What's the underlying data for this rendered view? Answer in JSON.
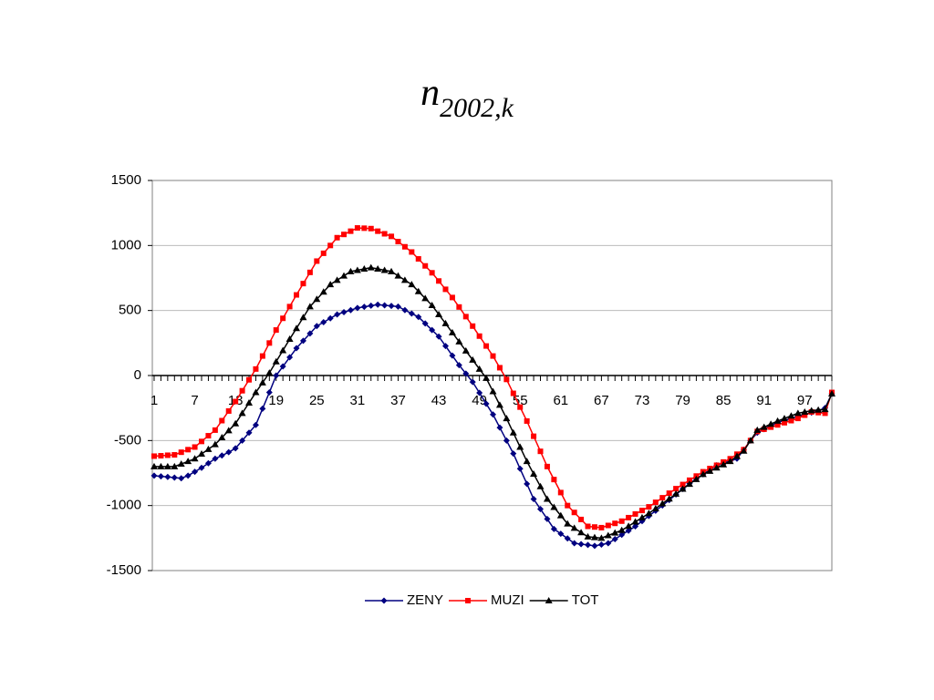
{
  "chart_data": {
    "type": "line",
    "title": "n",
    "title_subscript": "2002,k",
    "categories": [
      "1",
      null,
      null,
      null,
      null,
      null,
      "7",
      null,
      null,
      null,
      null,
      null,
      "13",
      null,
      null,
      null,
      null,
      null,
      "19",
      null,
      null,
      null,
      null,
      null,
      "25",
      null,
      null,
      null,
      null,
      null,
      "31",
      null,
      null,
      null,
      null,
      null,
      "37",
      null,
      null,
      null,
      null,
      null,
      "43",
      null,
      null,
      null,
      null,
      null,
      "49",
      null,
      null,
      null,
      null,
      null,
      "55",
      null,
      null,
      null,
      null,
      null,
      "61",
      null,
      null,
      null,
      null,
      null,
      "67",
      null,
      null,
      null,
      null,
      null,
      "73",
      null,
      null,
      null,
      null,
      null,
      "79",
      null,
      null,
      null,
      null,
      null,
      "85",
      null,
      null,
      null,
      null,
      null,
      "91",
      null,
      null,
      null,
      null,
      null,
      "97",
      null,
      null,
      null,
      null
    ],
    "series": [
      {
        "name": "ZENY",
        "color": "#000080",
        "marker": "diamond",
        "values": [
          -770,
          -775,
          -780,
          -785,
          -790,
          -770,
          -740,
          -710,
          -675,
          -640,
          -615,
          -590,
          -560,
          -500,
          -440,
          -380,
          -255,
          -130,
          0,
          70,
          140,
          210,
          267,
          323,
          380,
          410,
          440,
          470,
          487,
          503,
          520,
          528,
          537,
          545,
          540,
          535,
          530,
          503,
          477,
          450,
          400,
          350,
          300,
          227,
          153,
          80,
          15,
          -50,
          -133,
          -217,
          -300,
          -400,
          -500,
          -600,
          -717,
          -833,
          -950,
          -1027,
          -1103,
          -1180,
          -1217,
          -1253,
          -1290,
          -1297,
          -1303,
          -1310,
          -1300,
          -1290,
          -1258,
          -1225,
          -1193,
          -1160,
          -1120,
          -1080,
          -1040,
          -1000,
          -958,
          -915,
          -873,
          -830,
          -795,
          -760,
          -725,
          -690,
          -673,
          -657,
          -640,
          -570,
          -500,
          -440,
          -413,
          -387,
          -360,
          -345,
          -330,
          -315,
          -300,
          -285,
          -270,
          -250,
          -140
        ]
      },
      {
        "name": "MUZI",
        "color": "#ff0000",
        "marker": "square",
        "values": [
          -620,
          -617,
          -613,
          -610,
          -590,
          -570,
          -550,
          -507,
          -463,
          -420,
          -347,
          -273,
          -200,
          -117,
          -33,
          50,
          150,
          250,
          350,
          440,
          530,
          620,
          707,
          793,
          880,
          940,
          1000,
          1060,
          1085,
          1110,
          1135,
          1133,
          1130,
          1110,
          1090,
          1070,
          1030,
          990,
          950,
          897,
          843,
          790,
          727,
          663,
          600,
          527,
          453,
          380,
          303,
          227,
          150,
          60,
          -30,
          -137,
          -243,
          -350,
          -467,
          -583,
          -700,
          -800,
          -900,
          -1000,
          -1053,
          -1107,
          -1160,
          -1165,
          -1170,
          -1153,
          -1137,
          -1120,
          -1093,
          -1065,
          -1038,
          -1010,
          -975,
          -940,
          -905,
          -870,
          -838,
          -805,
          -773,
          -740,
          -715,
          -690,
          -665,
          -640,
          -605,
          -570,
          -500,
          -430,
          -413,
          -397,
          -380,
          -363,
          -347,
          -330,
          -305,
          -280,
          -285,
          -290,
          -130
        ]
      },
      {
        "name": "TOT",
        "color": "#000000",
        "marker": "triangle",
        "values": [
          -700,
          -700,
          -700,
          -700,
          -680,
          -660,
          -640,
          -603,
          -567,
          -530,
          -477,
          -423,
          -370,
          -290,
          -210,
          -130,
          -55,
          20,
          107,
          193,
          280,
          363,
          447,
          530,
          587,
          643,
          700,
          733,
          767,
          800,
          810,
          820,
          830,
          820,
          810,
          800,
          767,
          733,
          700,
          647,
          593,
          540,
          470,
          400,
          330,
          260,
          190,
          120,
          50,
          -20,
          -123,
          -227,
          -330,
          -440,
          -550,
          -660,
          -757,
          -853,
          -950,
          -1013,
          -1077,
          -1140,
          -1173,
          -1207,
          -1240,
          -1245,
          -1250,
          -1230,
          -1210,
          -1190,
          -1158,
          -1125,
          -1093,
          -1060,
          -1023,
          -985,
          -948,
          -910,
          -873,
          -835,
          -798,
          -760,
          -735,
          -710,
          -685,
          -660,
          -620,
          -580,
          -500,
          -420,
          -397,
          -373,
          -350,
          -330,
          -310,
          -290,
          -280,
          -270,
          -265,
          -260,
          -140
        ]
      }
    ],
    "ylim": [
      -1500,
      1500
    ],
    "yticks": [
      -1500,
      -1000,
      -500,
      0,
      500,
      1000,
      1500
    ],
    "grid": true,
    "legend": "bottom"
  }
}
